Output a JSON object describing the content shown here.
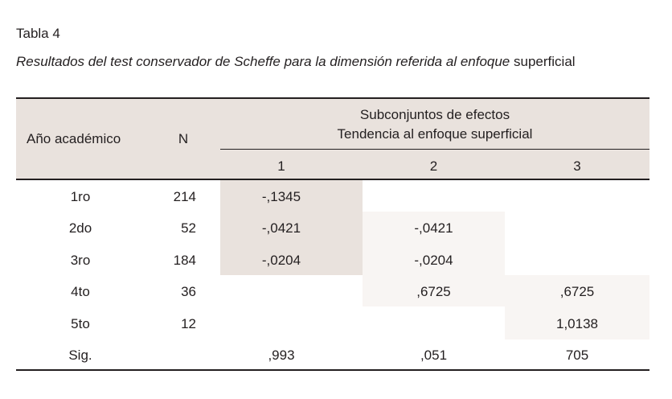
{
  "caption": {
    "label": "Tabla 4",
    "title_italic": "Resultados del test conservador de Scheffe para la dimensión referida al enfoque",
    "title_regular": "superficial"
  },
  "table": {
    "headers": {
      "year": "Año académico",
      "n": "N",
      "group_line1": "Subconjuntos de efectos",
      "group_line2": "Tendencia al enfoque superficial",
      "subsets": [
        "1",
        "2",
        "3"
      ]
    },
    "rows": [
      {
        "year": "1ro",
        "n": "214",
        "s1": "-,1345",
        "s2": "",
        "s3": ""
      },
      {
        "year": "2do",
        "n": "52",
        "s1": "-,0421",
        "s2": "-,0421",
        "s3": ""
      },
      {
        "year": "3ro",
        "n": "184",
        "s1": "-,0204",
        "s2": "-,0204",
        "s3": ""
      },
      {
        "year": "4to",
        "n": "36",
        "s1": "",
        "s2": ",6725",
        "s3": ",6725"
      },
      {
        "year": "5to",
        "n": "12",
        "s1": "",
        "s2": "",
        "s3": "1,0138"
      }
    ],
    "sig": {
      "label": "Sig.",
      "n": "",
      "s1": ",993",
      "s2": ",051",
      "s3": "705"
    }
  },
  "colors": {
    "header_fill": "#e9e2dd",
    "subset1_fill": "#e9e2dd",
    "subset_other_fill": "#f8f5f3",
    "text": "#231f20"
  }
}
